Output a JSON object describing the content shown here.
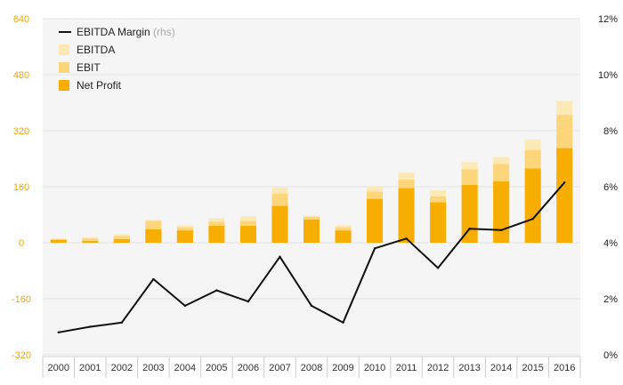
{
  "chart_data": {
    "type": "bar",
    "categories": [
      "2000",
      "2001",
      "2002",
      "2003",
      "2004",
      "2005",
      "2006",
      "2007",
      "2008",
      "2009",
      "2010",
      "2011",
      "2012",
      "2013",
      "2014",
      "2015",
      "2016"
    ],
    "series": [
      {
        "name": "EBITDA",
        "kind": "bar",
        "color": "#fde9b6",
        "values": [
          12,
          16,
          24,
          65,
          50,
          70,
          75,
          158,
          77,
          50,
          162,
          200,
          150,
          230,
          245,
          295,
          405
        ]
      },
      {
        "name": "EBIT",
        "kind": "bar",
        "color": "#fdd57a",
        "values": [
          10,
          12,
          19,
          62,
          44,
          60,
          62,
          140,
          74,
          44,
          146,
          180,
          132,
          210,
          225,
          265,
          365
        ]
      },
      {
        "name": "Net Profit",
        "kind": "bar",
        "color": "#f8ae00",
        "values": [
          8,
          5,
          10,
          38,
          35,
          48,
          48,
          105,
          66,
          35,
          125,
          156,
          115,
          165,
          175,
          212,
          270
        ]
      },
      {
        "name": "EBITDA Margin",
        "kind": "line",
        "axis": "right",
        "color": "#111111",
        "values": [
          0.8,
          1.0,
          1.15,
          2.7,
          1.75,
          2.3,
          1.9,
          3.5,
          1.75,
          1.15,
          3.8,
          4.15,
          3.1,
          4.5,
          4.45,
          4.85,
          6.15
        ]
      }
    ],
    "legend": {
      "line_label": "EBITDA Margin",
      "line_suffix": "(rhs)",
      "items": [
        "EBITDA",
        "EBIT",
        "Net Profit"
      ],
      "placement": "top-left"
    },
    "y_left": {
      "min": -320,
      "max": 640,
      "ticks": [
        640,
        480,
        320,
        160,
        0,
        -160,
        -320
      ],
      "labels": [
        "640",
        "480",
        "320",
        "160",
        "0",
        "-160",
        "-320"
      ]
    },
    "y_right": {
      "min": 0,
      "max": 12,
      "ticks": [
        12,
        10,
        8,
        6,
        4,
        2,
        0
      ],
      "labels": [
        "12%",
        "10%",
        "8%",
        "6%",
        "4%",
        "2%",
        "0%"
      ]
    },
    "grid": true
  }
}
